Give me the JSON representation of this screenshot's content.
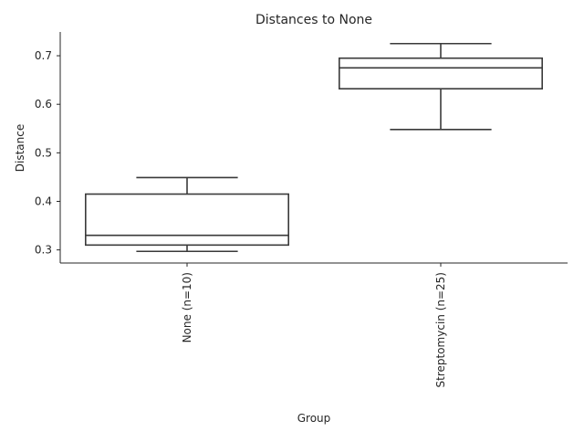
{
  "chart_data": {
    "type": "box",
    "title": "Distances to None",
    "xlabel": "Group",
    "ylabel": "Distance",
    "ylim": [
      0.273,
      0.749
    ],
    "yticks": [
      0.3,
      0.4,
      0.5,
      0.6,
      0.7
    ],
    "grid": false,
    "categories": [
      "None (n=10)",
      "Streptomycin (n=25)"
    ],
    "boxes": [
      {
        "category": "None (n=10)",
        "whisker_low": 0.297,
        "q1": 0.31,
        "median": 0.33,
        "q3": 0.415,
        "whisker_high": 0.449
      },
      {
        "category": "Streptomycin (n=25)",
        "whisker_low": 0.548,
        "q1": 0.632,
        "median": 0.675,
        "q3": 0.695,
        "whisker_high": 0.725
      }
    ],
    "colors": {
      "ink": "#3a3a3a",
      "text": "#262626",
      "box_fill": "#ffffff"
    }
  }
}
